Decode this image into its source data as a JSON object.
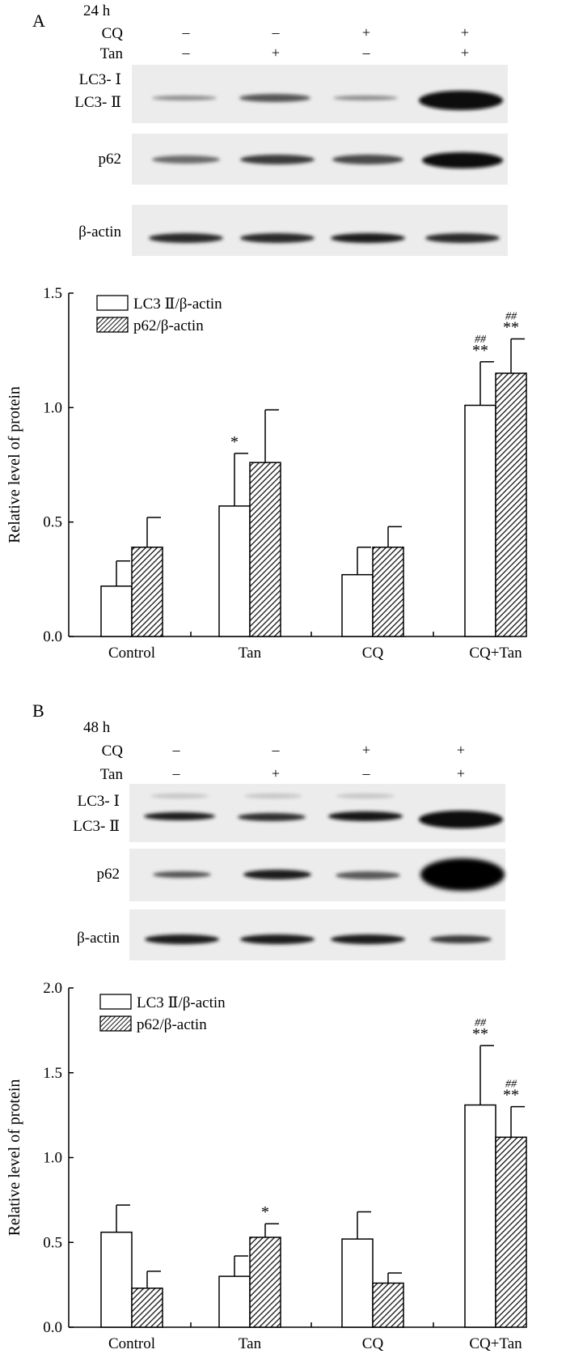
{
  "panels": [
    {
      "letter": "A",
      "time": "24 h",
      "conditions": [
        {
          "label": "CQ",
          "values": [
            "–",
            "–",
            "+",
            "+"
          ]
        },
        {
          "label": "Tan",
          "values": [
            "–",
            "+",
            "–",
            "+"
          ]
        }
      ],
      "blot_labels": {
        "lc3_i": "LC3- Ⅰ",
        "lc3_ii": "LC3- Ⅱ",
        "p62": "p62",
        "actin": "β-actin"
      }
    },
    {
      "letter": "B",
      "time": "48 h",
      "conditions": [
        {
          "label": "CQ",
          "values": [
            "–",
            "–",
            "+",
            "+"
          ]
        },
        {
          "label": "Tan",
          "values": [
            "–",
            "+",
            "–",
            "+"
          ]
        }
      ],
      "blot_labels": {
        "lc3_i": "LC3- Ⅰ",
        "lc3_ii": "LC3- Ⅱ",
        "p62": "p62",
        "actin": "β-actin"
      }
    }
  ],
  "colors": {
    "series1_fill": "#ffffff",
    "series2_fill": "hatched-black",
    "blot_bg": "#ececec",
    "band": "#1a1a1a"
  },
  "chart_data": [
    {
      "type": "bar",
      "categories": [
        "Control",
        "Tan",
        "CQ",
        "CQ+Tan"
      ],
      "series": [
        {
          "name": "LC3 Ⅱ/β-actin",
          "values": [
            0.22,
            0.57,
            0.27,
            1.01
          ],
          "errors": [
            0.11,
            0.23,
            0.12,
            0.19
          ],
          "annotations": [
            "",
            "*",
            "",
            "##|**"
          ]
        },
        {
          "name": "p62/β-actin",
          "values": [
            0.39,
            0.76,
            0.39,
            1.15
          ],
          "errors": [
            0.13,
            0.23,
            0.09,
            0.15
          ],
          "annotations": [
            "",
            "",
            "",
            "##|**"
          ]
        }
      ],
      "ylabel": "Relative level of protein",
      "ylim": [
        0,
        1.5
      ],
      "yticks": [
        "0.0",
        "0.5",
        "1.0",
        "1.5"
      ],
      "legend_position": "top-left"
    },
    {
      "type": "bar",
      "categories": [
        "Control",
        "Tan",
        "CQ",
        "CQ+Tan"
      ],
      "series": [
        {
          "name": "LC3 Ⅱ/β-actin",
          "values": [
            0.56,
            0.3,
            0.52,
            1.31
          ],
          "errors": [
            0.16,
            0.12,
            0.16,
            0.35
          ],
          "annotations": [
            "",
            "",
            "",
            "##|**"
          ]
        },
        {
          "name": "p62/β-actin",
          "values": [
            0.23,
            0.53,
            0.26,
            1.12
          ],
          "errors": [
            0.1,
            0.08,
            0.06,
            0.18
          ],
          "annotations": [
            "",
            "*",
            "",
            "##|**"
          ]
        }
      ],
      "ylabel": "Relative level of protein",
      "ylim": [
        0,
        2.0
      ],
      "yticks": [
        "0.0",
        "0.5",
        "1.0",
        "1.5",
        "2.0"
      ],
      "legend_position": "top-left"
    }
  ]
}
